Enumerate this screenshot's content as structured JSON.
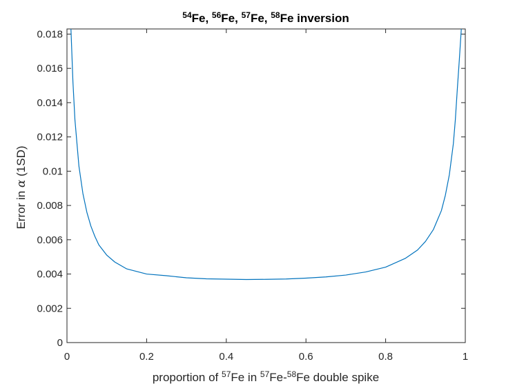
{
  "chart_data": {
    "type": "line",
    "title": "54Fe, 56Fe, 57Fe, 58Fe inversion",
    "title_parts": [
      {
        "sup": "54",
        "text": "Fe, "
      },
      {
        "sup": "56",
        "text": "Fe, "
      },
      {
        "sup": "57",
        "text": "Fe, "
      },
      {
        "sup": "58",
        "text": "Fe inversion"
      }
    ],
    "xlabel": "proportion of 57Fe in 57Fe-58Fe double spike",
    "xlabel_parts": [
      {
        "text": "proportion of "
      },
      {
        "sup": "57",
        "text": "Fe in "
      },
      {
        "sup": "57",
        "text": "Fe-"
      },
      {
        "sup": "58",
        "text": "Fe double spike"
      }
    ],
    "ylabel": "Error in α (1SD)",
    "ylabel_parts": [
      {
        "text": "Error in "
      },
      {
        "greek": "α"
      },
      {
        "text": " (1SD)"
      }
    ],
    "xlim": [
      0,
      1
    ],
    "ylim": [
      0,
      0.0183
    ],
    "xticks": [
      0,
      0.2,
      0.4,
      0.6,
      0.8,
      1
    ],
    "xtick_labels": [
      "0",
      "0.2",
      "0.4",
      "0.6",
      "0.8",
      "1"
    ],
    "yticks": [
      0,
      0.002,
      0.004,
      0.006,
      0.008,
      0.01,
      0.012,
      0.014,
      0.016,
      0.018
    ],
    "ytick_labels": [
      "0",
      "0.002",
      "0.004",
      "0.006",
      "0.008",
      "0.01",
      "0.012",
      "0.014",
      "0.016",
      "0.018"
    ],
    "grid": false,
    "line_color": "#0072BD",
    "series": [
      {
        "x": [
          0.01,
          0.015,
          0.02,
          0.03,
          0.04,
          0.05,
          0.06,
          0.07,
          0.08,
          0.1,
          0.12,
          0.15,
          0.2,
          0.25,
          0.3,
          0.35,
          0.4,
          0.45,
          0.5,
          0.55,
          0.6,
          0.65,
          0.7,
          0.75,
          0.8,
          0.85,
          0.88,
          0.9,
          0.92,
          0.94,
          0.95,
          0.96,
          0.97,
          0.975,
          0.98,
          0.985,
          0.99
        ],
        "y": [
          0.0183,
          0.0152,
          0.013,
          0.0103,
          0.0087,
          0.0076,
          0.0068,
          0.0062,
          0.0057,
          0.0051,
          0.0047,
          0.0043,
          0.004,
          0.0039,
          0.00378,
          0.00372,
          0.0037,
          0.00368,
          0.00369,
          0.00371,
          0.00376,
          0.00383,
          0.00394,
          0.00412,
          0.0044,
          0.00492,
          0.0054,
          0.0059,
          0.0066,
          0.0077,
          0.0086,
          0.0098,
          0.0116,
          0.013,
          0.0148,
          0.0165,
          0.0183
        ]
      }
    ]
  }
}
